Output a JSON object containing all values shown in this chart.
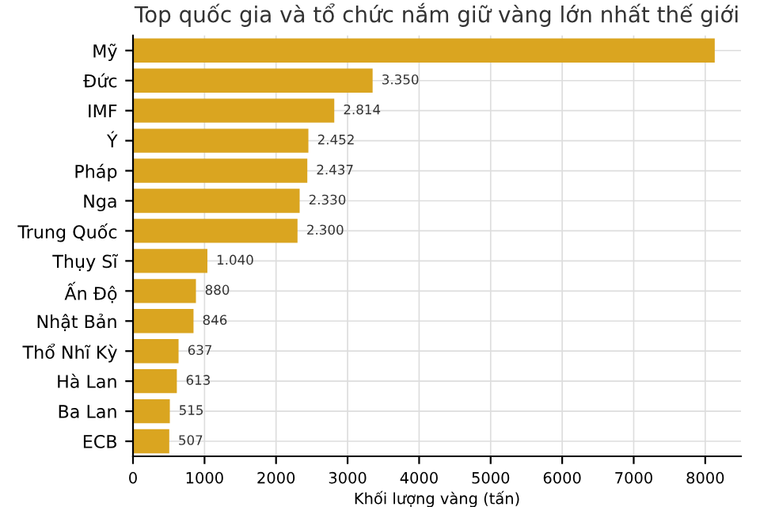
{
  "chart_data": {
    "type": "bar",
    "orientation": "horizontal",
    "title": "Top quốc gia và tổ chức nắm giữ vàng lớn nhất thế giới",
    "xlabel": "Khối lượng vàng (tấn)",
    "categories": [
      "Mỹ",
      "Đức",
      "IMF",
      "Ý",
      "Pháp",
      "Nga",
      "Trung Quốc",
      "Thụy Sĩ",
      "Ấn Độ",
      "Nhật Bản",
      "Thổ Nhĩ Kỳ",
      "Hà Lan",
      "Ba Lan",
      "ECB"
    ],
    "values": [
      8133,
      3350,
      2814,
      2452,
      2437,
      2330,
      2300,
      1040,
      880,
      846,
      637,
      613,
      515,
      507
    ],
    "value_labels": [
      null,
      "3.350",
      "2.814",
      "2.452",
      "2.437",
      "2.330",
      "2.300",
      "1.040",
      "880",
      "846",
      "637",
      "613",
      "515",
      "507"
    ],
    "color": "#daa520",
    "xlim": [
      0,
      8500
    ],
    "xticks": [
      0,
      1000,
      2000,
      3000,
      4000,
      5000,
      6000,
      7000,
      8000
    ],
    "grid": true
  }
}
